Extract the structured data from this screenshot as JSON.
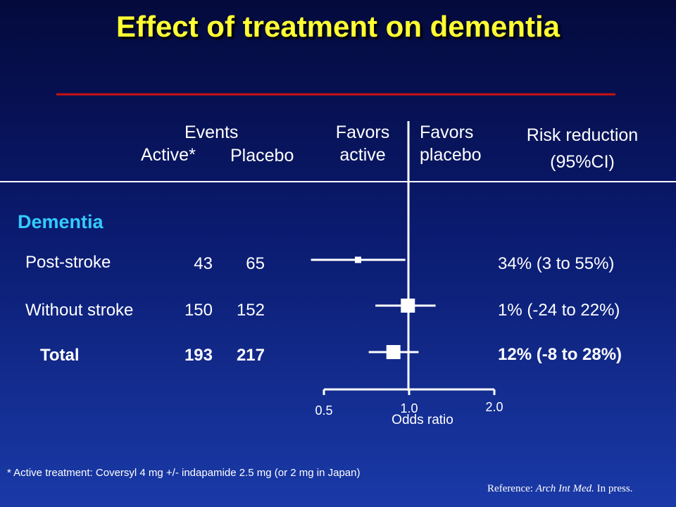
{
  "slide": {
    "title": "Effect of treatment on dementia",
    "accent_line_color": "#cc1111",
    "title_color": "#ffff33",
    "section_color": "#33ccff"
  },
  "headers": {
    "events": "Events",
    "active": "Active*",
    "placebo": "Placebo",
    "favors_active_1": "Favors",
    "favors_active_2": "active",
    "favors_placebo_1": "Favors",
    "favors_placebo_2": "placebo",
    "risk_1": "Risk reduction",
    "risk_2": "(95%CI)"
  },
  "section": "Dementia",
  "rows": [
    {
      "label": "Post-stroke",
      "active": "43",
      "placebo": "65",
      "risk": "34% (3 to 55%)"
    },
    {
      "label": "Without stroke",
      "active": "150",
      "placebo": "152",
      "risk": "1% (-24 to 22%)"
    },
    {
      "label": "Total",
      "active": "193",
      "placebo": "217",
      "risk": "12% (-8 to 28%)"
    }
  ],
  "axis": {
    "ticks": [
      "0.5",
      "1.0",
      "2.0"
    ],
    "label": "Odds ratio"
  },
  "footnote": "* Active treatment: Coversyl 4 mg +/- indapamide 2.5 mg (or 2 mg in Japan)",
  "reference": {
    "prefix": "Reference: ",
    "journal": "Arch Int Med.",
    "suffix": " In press."
  },
  "chart_data": {
    "type": "forest",
    "xlabel": "Odds ratio",
    "x_scale": "log",
    "xlim": [
      0.5,
      2.0
    ],
    "reference_line": 1.0,
    "categories": [
      "Post-stroke",
      "Without stroke",
      "Total"
    ],
    "estimates": [
      0.66,
      0.99,
      0.88
    ],
    "ci_low": [
      0.45,
      0.76,
      0.72
    ],
    "ci_high": [
      0.97,
      1.24,
      1.08
    ],
    "weight": [
      "small",
      "large",
      "large"
    ]
  }
}
